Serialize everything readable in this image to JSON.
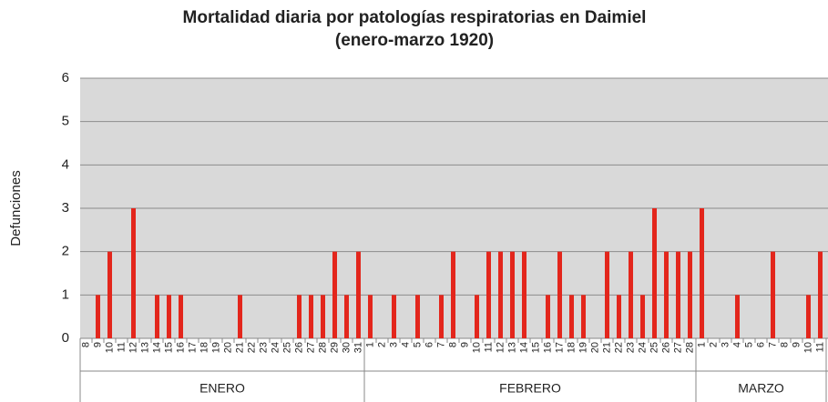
{
  "chart_data": {
    "type": "bar",
    "title": "Mortalidad diaria por patologías respiratorias en Daimiel",
    "subtitle": "(enero-marzo 1920)",
    "y_label": "Defunciones",
    "color": "#e3261c",
    "ylim": [
      0,
      6
    ],
    "yticks": [
      0,
      1,
      2,
      3,
      4,
      5,
      6
    ],
    "grid": true,
    "groups": [
      {
        "label": "ENERO",
        "categories": [
          "8",
          "9",
          "10",
          "11",
          "12",
          "13",
          "14",
          "15",
          "16",
          "17",
          "18",
          "19",
          "20",
          "21",
          "22",
          "23",
          "24",
          "25",
          "26",
          "27",
          "28",
          "29",
          "30",
          "31"
        ],
        "values": [
          0,
          1,
          2,
          0,
          3,
          0,
          1,
          1,
          1,
          0,
          0,
          0,
          0,
          1,
          0,
          0,
          0,
          0,
          1,
          1,
          1,
          2,
          1,
          2
        ]
      },
      {
        "label": "FEBRERO",
        "categories": [
          "1",
          "2",
          "3",
          "4",
          "5",
          "6",
          "7",
          "8",
          "9",
          "10",
          "11",
          "12",
          "13",
          "14",
          "15",
          "16",
          "17",
          "18",
          "19",
          "20",
          "21",
          "22",
          "23",
          "24",
          "25",
          "26",
          "27",
          "28"
        ],
        "values": [
          1,
          0,
          1,
          0,
          1,
          0,
          1,
          2,
          0,
          1,
          2,
          2,
          2,
          2,
          0,
          1,
          2,
          1,
          1,
          0,
          2,
          1,
          2,
          1,
          3,
          2,
          2,
          2
        ]
      },
      {
        "label": "MARZO",
        "categories": [
          "1",
          "2",
          "3",
          "4",
          "5",
          "6",
          "7",
          "8",
          "9",
          "10",
          "11"
        ],
        "values": [
          3,
          0,
          0,
          1,
          0,
          0,
          2,
          0,
          0,
          1,
          2
        ]
      }
    ]
  }
}
